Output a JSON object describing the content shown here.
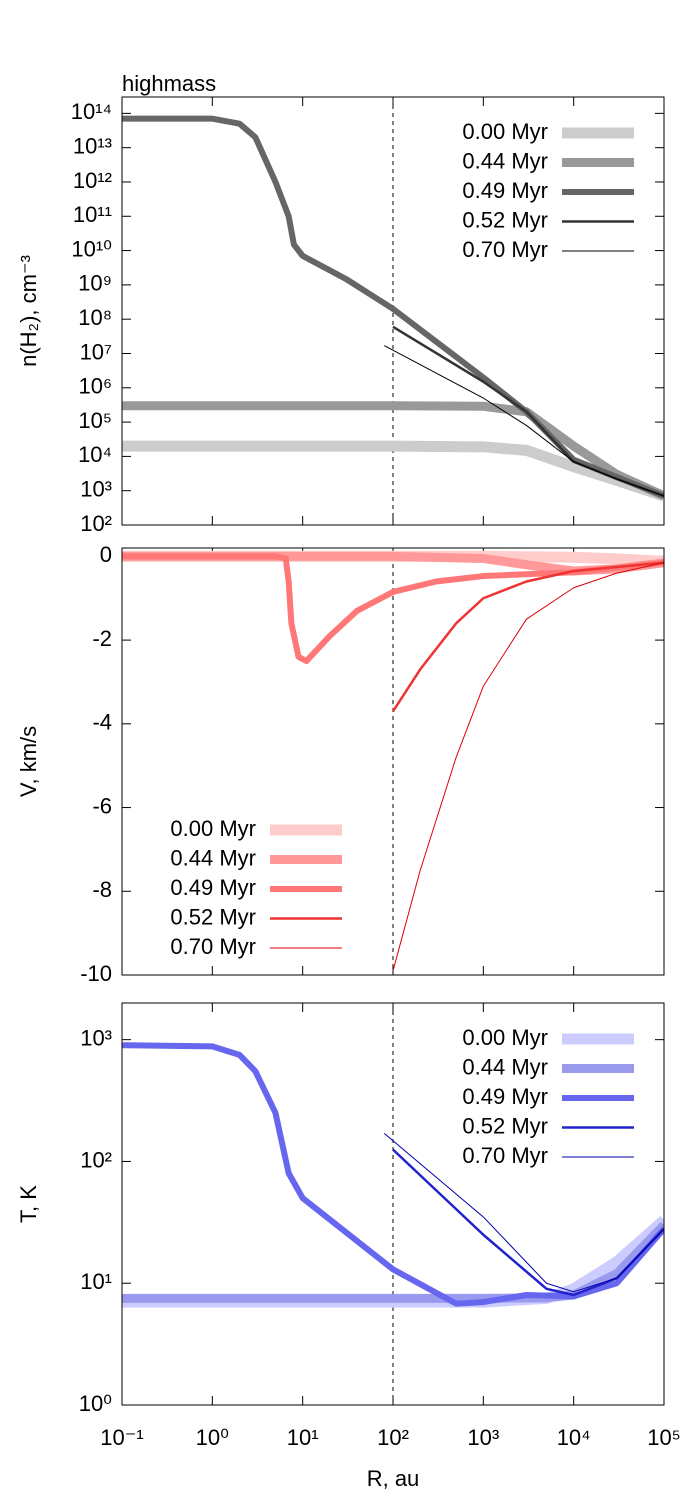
{
  "chart_data": [
    {
      "type": "line",
      "title": "highmass",
      "ylabel": "n(H₂), cm⁻³",
      "xlog": true,
      "ylog": true,
      "legend": "upper right",
      "vline": 100,
      "xlim": [
        0.1,
        100000
      ],
      "xticks": [
        0.1,
        1,
        10,
        100,
        1000,
        10000,
        100000
      ],
      "ylim": [
        100,
        300000000000000
      ],
      "yticks": [
        {
          "value": 100,
          "label": "10²"
        },
        {
          "value": 1000,
          "label": "10³"
        },
        {
          "value": 10000,
          "label": "10⁴"
        },
        {
          "value": 100000,
          "label": "10⁵"
        },
        {
          "value": 1000000,
          "label": "10⁶"
        },
        {
          "value": 10000000,
          "label": "10⁷"
        },
        {
          "value": 100000000,
          "label": "10⁸"
        },
        {
          "value": 1000000000,
          "label": "10⁹"
        },
        {
          "value": 10000000000,
          "label": "10¹⁰"
        },
        {
          "value": 100000000000,
          "label": "10¹¹"
        },
        {
          "value": 1000000000000,
          "label": "10¹²"
        },
        {
          "value": 10000000000000,
          "label": "10¹³"
        },
        {
          "value": 100000000000000,
          "label": "10¹⁴"
        }
      ],
      "series": [
        {
          "name": "0.00 Myr",
          "color": "#cccccc",
          "linewidth": 11,
          "x": [
            0.1,
            1,
            10,
            100,
            1000,
            3000,
            10000,
            30000,
            100000
          ],
          "values": [
            20000,
            20000,
            20000,
            20000,
            19000,
            15000,
            5000,
            2000,
            700
          ]
        },
        {
          "name": "0.44 Myr",
          "color": "#999999",
          "linewidth": 9,
          "x": [
            0.1,
            1,
            10,
            100,
            1000,
            3000,
            10000,
            30000,
            100000
          ],
          "values": [
            300000,
            300000,
            300000,
            300000,
            290000,
            200000,
            20000,
            3000,
            700
          ]
        },
        {
          "name": "0.49 Myr",
          "color": "#666666",
          "linewidth": 6,
          "x": [
            0.1,
            1,
            2,
            3,
            5,
            7,
            8,
            10,
            30,
            100,
            1000,
            3000,
            10000,
            30000,
            100000
          ],
          "values": [
            70000000000000,
            70000000000000,
            50000000000000,
            20000000000000,
            1000000000000,
            100000000000,
            15000000000,
            7000000000,
            1500000000,
            200000000,
            2000000,
            200000,
            8000,
            2500,
            700
          ]
        },
        {
          "name": "0.52 Myr",
          "color": "#333333",
          "linewidth": 2.5,
          "x": [
            100,
            1000,
            3000,
            10000,
            30000,
            100000
          ],
          "values": [
            60000000,
            1500000,
            200000,
            7000,
            2200,
            700
          ]
        },
        {
          "name": "0.70 Myr",
          "color": "#000000",
          "linewidth": 1,
          "x": [
            80,
            1000,
            3000,
            10000,
            30000,
            100000
          ],
          "values": [
            17000000,
            500000,
            80000,
            7000,
            2200,
            700
          ]
        }
      ]
    },
    {
      "type": "line",
      "ylabel": "V, km/s",
      "xlog": true,
      "ylog": false,
      "legend": "lower left",
      "vline": 100,
      "xlim": [
        0.1,
        100000
      ],
      "xticks": [
        0.1,
        1,
        10,
        100,
        1000,
        10000,
        100000
      ],
      "ylim": [
        -10,
        0.2
      ],
      "yticks": [
        -10,
        -8,
        -6,
        -4,
        -2,
        0
      ],
      "series": [
        {
          "name": "0.00 Myr",
          "color": "#ffcccc",
          "linewidth": 11,
          "x": [
            0.1,
            1,
            10,
            100,
            1000,
            10000,
            30000,
            100000
          ],
          "values": [
            0,
            0,
            0,
            0,
            0,
            -0.02,
            -0.06,
            -0.12
          ]
        },
        {
          "name": "0.44 Myr",
          "color": "#ff9999",
          "linewidth": 9,
          "x": [
            0.1,
            100,
            1000,
            3000,
            10000,
            30000,
            100000
          ],
          "values": [
            0,
            0,
            -0.05,
            -0.2,
            -0.35,
            -0.3,
            -0.15
          ]
        },
        {
          "name": "0.49 Myr",
          "color": "#ff7777",
          "linewidth": 6,
          "x": [
            0.1,
            5,
            6.5,
            7,
            7.5,
            9,
            11,
            20,
            40,
            100,
            300,
            1000,
            10000,
            100000
          ],
          "values": [
            0,
            0,
            -0.05,
            -0.6,
            -1.6,
            -2.4,
            -2.5,
            -1.9,
            -1.3,
            -0.85,
            -0.6,
            -0.47,
            -0.38,
            -0.15
          ]
        },
        {
          "name": "0.52 Myr",
          "color": "#ee3333",
          "linewidth": 2.5,
          "x": [
            100,
            200,
            500,
            1000,
            3000,
            10000,
            100000
          ],
          "values": [
            -3.7,
            -2.7,
            -1.6,
            -1.0,
            -0.6,
            -0.35,
            -0.15
          ]
        },
        {
          "name": "0.70 Myr",
          "color": "#dd0000",
          "linewidth": 1,
          "x": [
            100,
            200,
            500,
            1000,
            3000,
            10000,
            30000,
            100000
          ],
          "values": [
            -9.9,
            -7.5,
            -4.8,
            -3.1,
            -1.5,
            -0.75,
            -0.4,
            -0.15
          ]
        }
      ]
    },
    {
      "type": "line",
      "ylabel": "T, K",
      "xlabel": "R, au",
      "xlog": true,
      "ylog": true,
      "legend": "upper right",
      "vline": 100,
      "xlim": [
        0.1,
        100000
      ],
      "xticks": [
        {
          "value": 0.1,
          "label": "10⁻¹"
        },
        {
          "value": 1,
          "label": "10⁰"
        },
        {
          "value": 10,
          "label": "10¹"
        },
        {
          "value": 100,
          "label": "10²"
        },
        {
          "value": 1000,
          "label": "10³"
        },
        {
          "value": 10000,
          "label": "10⁴"
        },
        {
          "value": 100000,
          "label": "10⁵"
        }
      ],
      "ylim": [
        1,
        2000
      ],
      "yticks": [
        {
          "value": 1,
          "label": "10⁰"
        },
        {
          "value": 10,
          "label": "10¹"
        },
        {
          "value": 100,
          "label": "10²"
        },
        {
          "value": 1000,
          "label": "10³"
        }
      ],
      "series": [
        {
          "name": "0.00 Myr",
          "color": "#ccccff",
          "linewidth": 11,
          "x": [
            0.1,
            1000,
            5000,
            10000,
            30000,
            100000
          ],
          "values": [
            7,
            7,
            7.5,
            9,
            15,
            33
          ]
        },
        {
          "name": "0.44 Myr",
          "color": "#9999ee",
          "linewidth": 9,
          "x": [
            0.1,
            1000,
            5000,
            10000,
            30000,
            100000
          ],
          "values": [
            7.5,
            7.5,
            7.6,
            8,
            12,
            30
          ]
        },
        {
          "name": "0.49 Myr",
          "color": "#6666ee",
          "linewidth": 6,
          "x": [
            0.1,
            1,
            2,
            3,
            5,
            7,
            10,
            100,
            500,
            1000,
            3000,
            10000,
            30000,
            100000
          ],
          "values": [
            900,
            880,
            750,
            550,
            250,
            80,
            50,
            13,
            6.8,
            7,
            8,
            7.8,
            10,
            28
          ]
        },
        {
          "name": "0.52 Myr",
          "color": "#2222cc",
          "linewidth": 2.5,
          "x": [
            100,
            1000,
            5000,
            10000,
            30000,
            100000
          ],
          "values": [
            125,
            25,
            9,
            8,
            11,
            28
          ]
        },
        {
          "name": "0.70 Myr",
          "color": "#0000aa",
          "linewidth": 1,
          "x": [
            80,
            1000,
            5000,
            10000,
            30000,
            100000
          ],
          "values": [
            170,
            35,
            10,
            8.5,
            11,
            28
          ]
        }
      ]
    }
  ]
}
